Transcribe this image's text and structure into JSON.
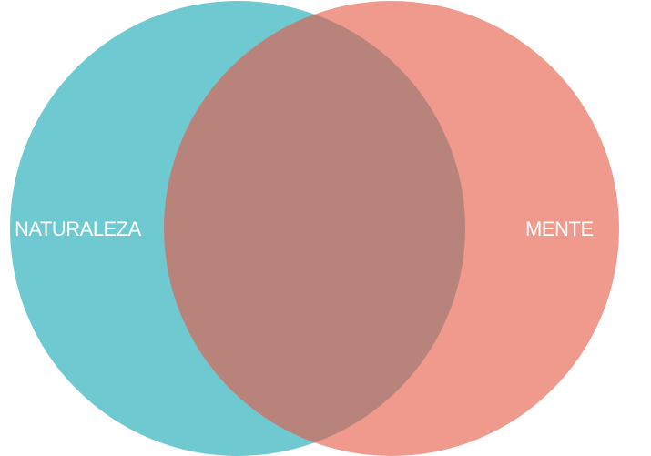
{
  "venn": {
    "sets": [
      {
        "label": "NATURALEZA",
        "color": "#6FC9D0"
      },
      {
        "label": "MENTE",
        "color": "#F09A8D"
      }
    ],
    "overlap_color": "#B8837A",
    "background": "#FFFFFF"
  }
}
